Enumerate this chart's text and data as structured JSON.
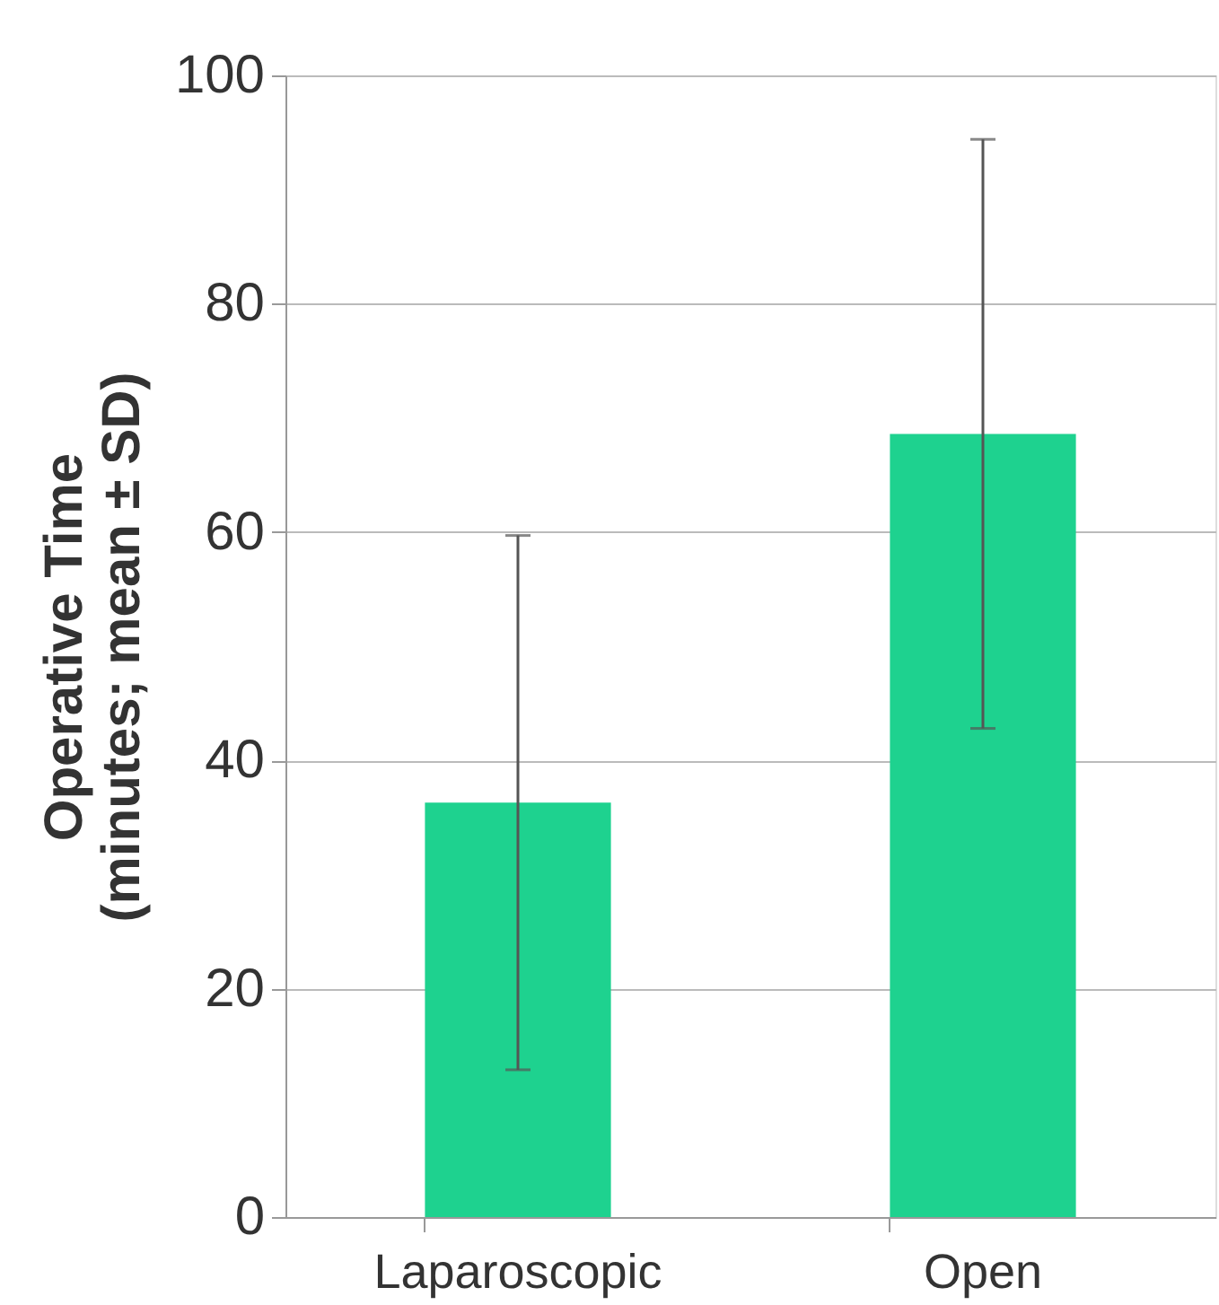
{
  "chart_data": {
    "type": "bar",
    "ylabel": "Operative Time\n(minutes; mean ± SD)",
    "categories": [
      "Laparoscopic",
      "Open"
    ],
    "values": [
      36.3,
      68.6
    ],
    "errors": [
      23.4,
      25.8
    ],
    "color": "#1ed28f",
    "ylim": [
      0,
      100
    ],
    "yticks": [
      0,
      20,
      40,
      60,
      80,
      100
    ],
    "grid": "y"
  }
}
